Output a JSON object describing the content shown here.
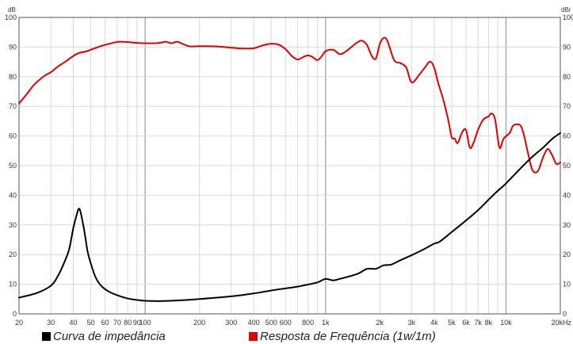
{
  "chart_data": {
    "type": "line",
    "x_scale": "log",
    "xlim": [
      20,
      20000
    ],
    "ylim": [
      0,
      100
    ],
    "grid": true,
    "y_unit_left": "dB",
    "y_unit_right": "dBr",
    "x_unit": "Hz",
    "y_ticks": [
      "0",
      "10",
      "20",
      "30",
      "40",
      "50",
      "60",
      "70",
      "80",
      "90",
      "100"
    ],
    "x_tick_labels": [
      {
        "x": 20,
        "label": "20"
      },
      {
        "x": 30,
        "label": "30"
      },
      {
        "x": 40,
        "label": "40"
      },
      {
        "x": 50,
        "label": "50"
      },
      {
        "x": 60,
        "label": "60"
      },
      {
        "x": 70,
        "label": "70"
      },
      {
        "x": 80,
        "label": "80"
      },
      {
        "x": 90,
        "label": "90"
      },
      {
        "x": 100,
        "label": "100"
      },
      {
        "x": 200,
        "label": "200"
      },
      {
        "x": 300,
        "label": "300"
      },
      {
        "x": 400,
        "label": "400"
      },
      {
        "x": 500,
        "label": "500"
      },
      {
        "x": 600,
        "label": "600"
      },
      {
        "x": 800,
        "label": "800"
      },
      {
        "x": 1000,
        "label": "1k"
      },
      {
        "x": 2000,
        "label": "2k"
      },
      {
        "x": 3000,
        "label": "3k"
      },
      {
        "x": 4000,
        "label": "4k"
      },
      {
        "x": 5000,
        "label": "5k"
      },
      {
        "x": 6000,
        "label": "6k"
      },
      {
        "x": 7000,
        "label": "7k"
      },
      {
        "x": 8000,
        "label": "8k"
      },
      {
        "x": 10000,
        "label": "10k"
      },
      {
        "x": 20000,
        "label": "20kHz"
      }
    ],
    "series": [
      {
        "name": "Resposta de Frequência (1w/1m)",
        "color": "#e00000",
        "points": [
          [
            20,
            71
          ],
          [
            22,
            74
          ],
          [
            24,
            77
          ],
          [
            26,
            79
          ],
          [
            28,
            80.5
          ],
          [
            30,
            81.5
          ],
          [
            33,
            83.5
          ],
          [
            36,
            85
          ],
          [
            40,
            87
          ],
          [
            43,
            88
          ],
          [
            47,
            88.5
          ],
          [
            52,
            89.5
          ],
          [
            58,
            90.5
          ],
          [
            65,
            91.3
          ],
          [
            72,
            91.8
          ],
          [
            80,
            91.7
          ],
          [
            90,
            91.4
          ],
          [
            100,
            91.3
          ],
          [
            115,
            91.3
          ],
          [
            125,
            91.6
          ],
          [
            130,
            91.8
          ],
          [
            140,
            91.3
          ],
          [
            150,
            91.8
          ],
          [
            160,
            91.2
          ],
          [
            170,
            90.5
          ],
          [
            180,
            90.2
          ],
          [
            200,
            90.3
          ],
          [
            250,
            90.2
          ],
          [
            300,
            89.8
          ],
          [
            350,
            89.5
          ],
          [
            400,
            89.6
          ],
          [
            450,
            90.6
          ],
          [
            500,
            91.1
          ],
          [
            550,
            90.8
          ],
          [
            600,
            89.3
          ],
          [
            650,
            87
          ],
          [
            700,
            85.8
          ],
          [
            750,
            86.6
          ],
          [
            800,
            87.2
          ],
          [
            850,
            86.6
          ],
          [
            900,
            85.6
          ],
          [
            950,
            86.8
          ],
          [
            1000,
            88.6
          ],
          [
            1100,
            89.1
          ],
          [
            1200,
            87.6
          ],
          [
            1300,
            88.6
          ],
          [
            1500,
            91.6
          ],
          [
            1600,
            92.1
          ],
          [
            1700,
            90.6
          ],
          [
            1800,
            87.1
          ],
          [
            1900,
            86.1
          ],
          [
            2000,
            91.1
          ],
          [
            2100,
            93.1
          ],
          [
            2200,
            92.1
          ],
          [
            2400,
            85.6
          ],
          [
            2600,
            84.6
          ],
          [
            2800,
            83.1
          ],
          [
            3000,
            78.1
          ],
          [
            3300,
            80.6
          ],
          [
            3600,
            83.6
          ],
          [
            3800,
            85.1
          ],
          [
            4000,
            83.1
          ],
          [
            4200,
            78.1
          ],
          [
            4500,
            72.1
          ],
          [
            4800,
            65.1
          ],
          [
            5000,
            59.6
          ],
          [
            5200,
            59.1
          ],
          [
            5400,
            57.6
          ],
          [
            5700,
            61.1
          ],
          [
            6000,
            62.1
          ],
          [
            6300,
            56.1
          ],
          [
            6600,
            57.6
          ],
          [
            7000,
            62.1
          ],
          [
            7500,
            65.6
          ],
          [
            8000,
            66.6
          ],
          [
            8300,
            67.6
          ],
          [
            8700,
            65.6
          ],
          [
            9200,
            56.1
          ],
          [
            9700,
            59.1
          ],
          [
            10500,
            61.1
          ],
          [
            11000,
            63.6
          ],
          [
            12000,
            63.6
          ],
          [
            12600,
            60.1
          ],
          [
            13200,
            54.6
          ],
          [
            14000,
            48.6
          ],
          [
            15000,
            48.1
          ],
          [
            16000,
            52.6
          ],
          [
            17000,
            55.6
          ],
          [
            18000,
            53.6
          ],
          [
            19000,
            50.6
          ],
          [
            20000,
            51.1
          ]
        ]
      },
      {
        "name": "Curva de impedância",
        "color": "#000000",
        "points": [
          [
            20,
            5.5
          ],
          [
            25,
            7
          ],
          [
            30,
            9.5
          ],
          [
            33,
            13
          ],
          [
            36,
            18
          ],
          [
            38,
            22
          ],
          [
            40,
            29
          ],
          [
            42,
            34
          ],
          [
            43,
            35.5
          ],
          [
            44,
            34
          ],
          [
            46,
            28
          ],
          [
            48,
            21
          ],
          [
            50,
            17
          ],
          [
            53,
            12.5
          ],
          [
            57,
            9.5
          ],
          [
            63,
            7.5
          ],
          [
            70,
            6.3
          ],
          [
            80,
            5.2
          ],
          [
            90,
            4.7
          ],
          [
            100,
            4.4
          ],
          [
            120,
            4.3
          ],
          [
            150,
            4.5
          ],
          [
            200,
            5
          ],
          [
            300,
            5.9
          ],
          [
            400,
            6.9
          ],
          [
            500,
            7.9
          ],
          [
            600,
            8.6
          ],
          [
            700,
            9.2
          ],
          [
            800,
            9.9
          ],
          [
            900,
            10.6
          ],
          [
            1000,
            11.8
          ],
          [
            1100,
            11.3
          ],
          [
            1200,
            11.8
          ],
          [
            1500,
            13.5
          ],
          [
            1700,
            15.2
          ],
          [
            1900,
            15.2
          ],
          [
            2100,
            16.4
          ],
          [
            2300,
            16.6
          ],
          [
            2600,
            18.1
          ],
          [
            3000,
            19.8
          ],
          [
            3500,
            21.8
          ],
          [
            4000,
            23.7
          ],
          [
            4300,
            24.4
          ],
          [
            5000,
            27.6
          ],
          [
            6000,
            31.5
          ],
          [
            7000,
            35
          ],
          [
            8000,
            38.5
          ],
          [
            9000,
            41.5
          ],
          [
            10000,
            44
          ],
          [
            12000,
            49
          ],
          [
            14000,
            53
          ],
          [
            16000,
            56
          ],
          [
            18000,
            59
          ],
          [
            20000,
            61
          ]
        ]
      }
    ]
  },
  "legend": {
    "impedance_label": "Curva de impedância",
    "response_label": "Resposta de Frequência (1w/1m)"
  }
}
